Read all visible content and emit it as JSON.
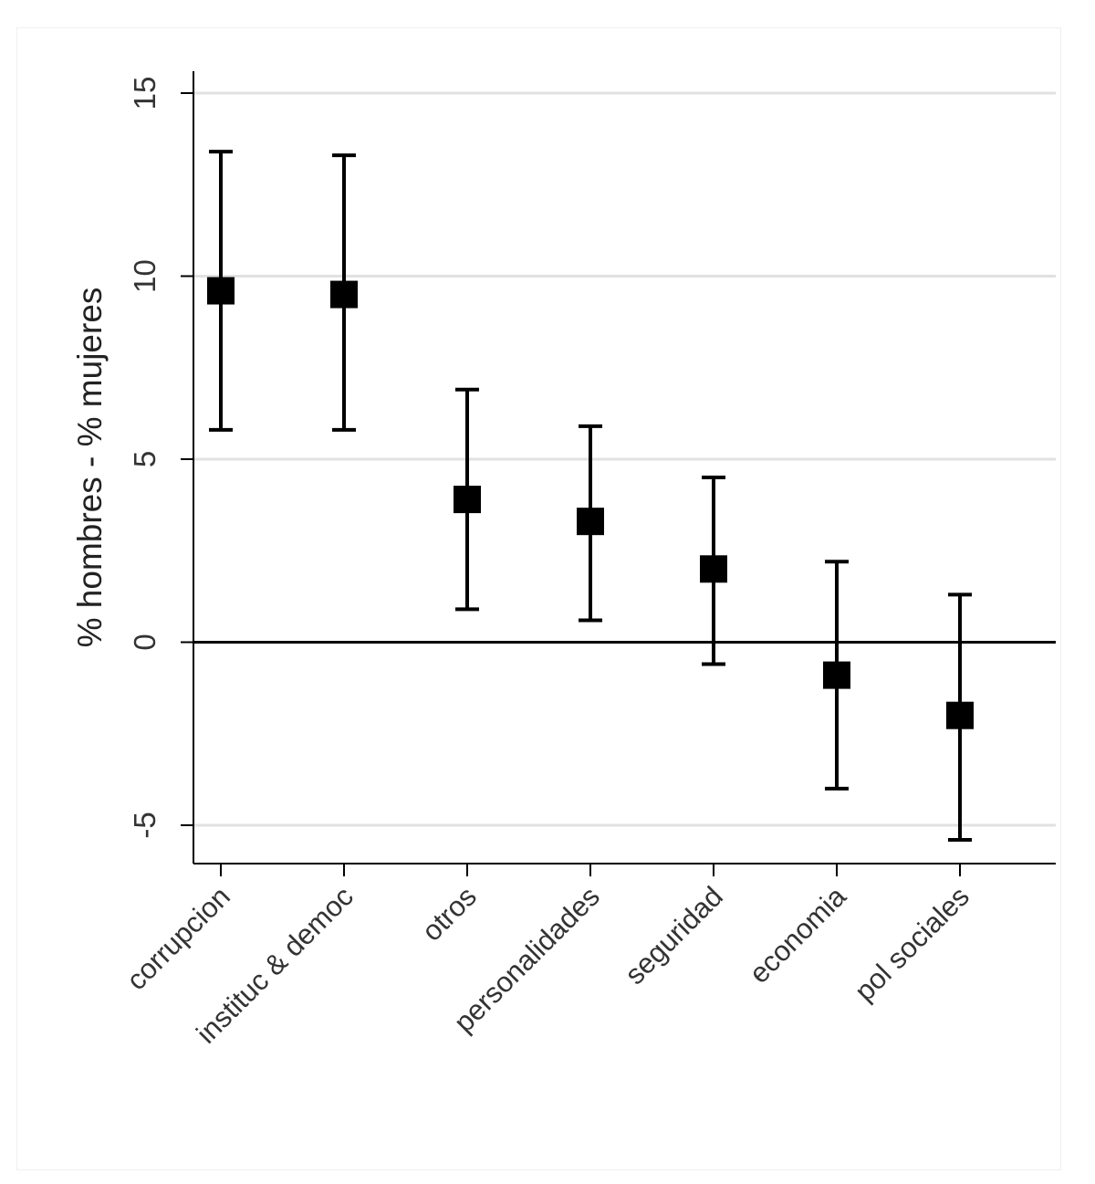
{
  "chart_data": {
    "type": "scatter",
    "ylabel": "% hombres - % mujeres",
    "xlabel": "",
    "ylim": [
      -6,
      16
    ],
    "yticks": [
      -5,
      0,
      5,
      10,
      15
    ],
    "ytick_labels": [
      "-5",
      "0",
      "5",
      "10",
      "15"
    ],
    "grid": true,
    "reference_line": 0,
    "categories": [
      "corrupcion",
      "instituc & democ",
      "otros",
      "personalidades",
      "seguridad",
      "economia",
      "pol sociales"
    ],
    "values": [
      9.6,
      9.5,
      3.9,
      3.3,
      2.0,
      -0.9,
      -2.0
    ],
    "ci_upper": [
      13.4,
      13.3,
      6.9,
      5.9,
      4.5,
      2.2,
      1.3
    ],
    "ci_lower": [
      5.8,
      5.8,
      0.9,
      0.6,
      -0.6,
      -4.0,
      -5.4
    ],
    "marker_color": "#000000",
    "grid_color": "#e1e1e1"
  }
}
